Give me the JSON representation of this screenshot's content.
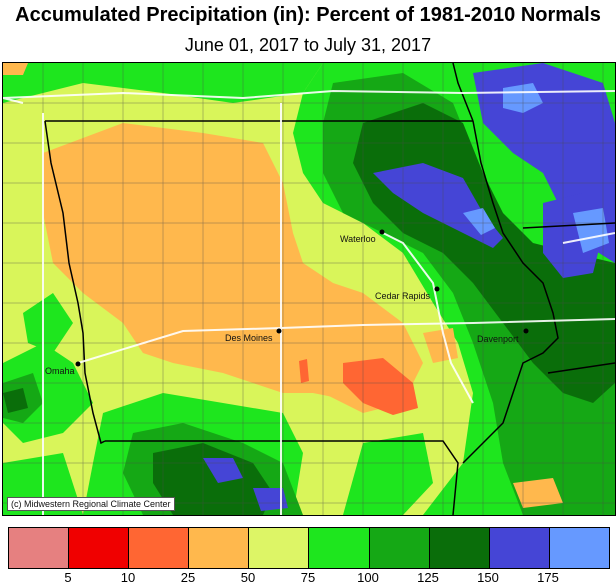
{
  "title": "Accumulated Precipitation (in): Percent of 1981-2010 Normals",
  "subtitle": "June 01, 2017 to July 31, 2017",
  "credit": "(c) Midwestern Regional Climate Center",
  "cities": [
    {
      "name": "Waterloo"
    },
    {
      "name": "Cedar Rapids"
    },
    {
      "name": "Des Moines"
    },
    {
      "name": "Omaha"
    },
    {
      "name": "Davenport"
    }
  ],
  "legend": {
    "colors": [
      "#e68080",
      "#f00000",
      "#ff6633",
      "#ffb84d",
      "#ddf566",
      "#1ee61e",
      "#15a815",
      "#0a6e0a",
      "#4545d6",
      "#6699ff"
    ],
    "ticks": [
      "5",
      "10",
      "25",
      "50",
      "75",
      "100",
      "125",
      "150",
      "175"
    ]
  }
}
